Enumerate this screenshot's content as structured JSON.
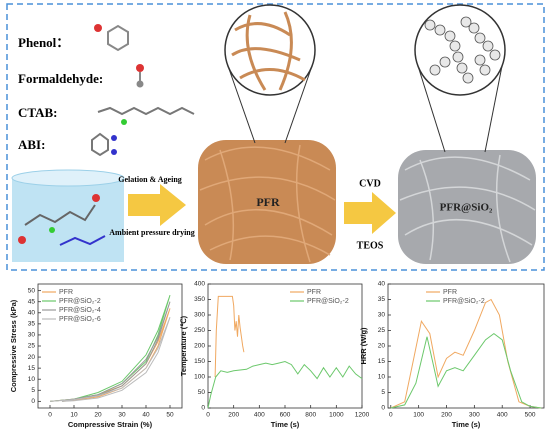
{
  "schematic": {
    "reagents": [
      "Phenol：",
      "Formaldehyde:",
      "CTAB:",
      "ABI:"
    ],
    "step1_top": "Gelation & Ageing",
    "step1_bottom": "Ambient pressure drying",
    "product1": "PFR",
    "step2_top": "CVD",
    "step2_bottom": "TEOS",
    "product2": "PFR@SiO₂"
  },
  "chart_data": [
    {
      "type": "line",
      "x_label": "Compressive Strain (%)",
      "y_label": "Compressive Stress (kPa)",
      "xlim": [
        -5,
        55
      ],
      "ylim": [
        -3,
        53
      ],
      "xticks": [
        0,
        10,
        20,
        30,
        40,
        50
      ],
      "yticks": [
        0,
        5,
        10,
        15,
        20,
        25,
        30,
        35,
        40,
        45,
        50
      ],
      "legend": "upper left",
      "series": [
        {
          "name": "PFR",
          "color": "#f0a860",
          "x": [
            0,
            10,
            20,
            30,
            40,
            45,
            50,
            45,
            40,
            30,
            20,
            10,
            5
          ],
          "values": [
            0,
            1,
            3,
            7,
            17,
            27,
            42,
            25,
            15,
            6,
            2,
            0.5,
            0
          ]
        },
        {
          "name": "PFR@SiO₂-2",
          "color": "#6cc86c",
          "x": [
            0,
            10,
            20,
            30,
            40,
            45,
            50,
            45,
            40,
            30,
            20,
            10,
            5
          ],
          "values": [
            0,
            1,
            4,
            9,
            21,
            32,
            48,
            30,
            18,
            8,
            3,
            1,
            0
          ]
        },
        {
          "name": "PFR@SiO₂-4",
          "color": "#999999",
          "x": [
            0,
            10,
            20,
            30,
            40,
            45,
            50,
            45,
            40,
            30,
            20,
            10,
            5
          ],
          "values": [
            0,
            1,
            3,
            8,
            19,
            29,
            45,
            28,
            17,
            7,
            2.5,
            0.8,
            0
          ]
        },
        {
          "name": "PFR@SiO₂-6",
          "color": "#bbbbbb",
          "x": [
            0,
            10,
            20,
            30,
            40,
            45,
            50,
            45,
            40,
            30,
            20,
            10,
            5
          ],
          "values": [
            0,
            0.8,
            2.5,
            6,
            15,
            24,
            38,
            22,
            13,
            5,
            1.5,
            0.3,
            0
          ]
        }
      ]
    },
    {
      "type": "line",
      "x_label": "Time (s)",
      "y_label": "Temperature (℃)",
      "xlim": [
        0,
        1200
      ],
      "ylim": [
        0,
        400
      ],
      "xticks": [
        0,
        200,
        400,
        600,
        800,
        1000,
        1200
      ],
      "yticks": [
        0,
        50,
        100,
        150,
        200,
        250,
        300,
        350,
        400
      ],
      "legend": "upper right",
      "series": [
        {
          "name": "PFR",
          "color": "#f0a860",
          "x": [
            55,
            65,
            80,
            190,
            200,
            210,
            220,
            230,
            240,
            250,
            260,
            270,
            280
          ],
          "values": [
            100,
            250,
            360,
            360,
            330,
            250,
            280,
            230,
            300,
            260,
            230,
            200,
            180
          ]
        },
        {
          "name": "PFR@SiO₂-2",
          "color": "#6cc86c",
          "x": [
            0,
            20,
            60,
            100,
            150,
            200,
            300,
            350,
            400,
            450,
            500,
            550,
            600,
            650,
            700,
            750,
            800,
            850,
            900,
            950,
            1000,
            1050,
            1100,
            1150,
            1200
          ],
          "values": [
            0,
            40,
            100,
            120,
            115,
            120,
            125,
            135,
            140,
            145,
            140,
            145,
            150,
            140,
            110,
            140,
            120,
            95,
            130,
            100,
            130,
            100,
            135,
            110,
            95
          ]
        }
      ]
    },
    {
      "type": "line",
      "x_label": "Time (s)",
      "y_label": "HRR (W/g)",
      "xlim": [
        -10,
        550
      ],
      "ylim": [
        0,
        40
      ],
      "xticks": [
        0,
        100,
        200,
        300,
        400,
        500
      ],
      "yticks": [
        0,
        5,
        10,
        15,
        20,
        25,
        30,
        35,
        40
      ],
      "legend": "upper center",
      "series": [
        {
          "name": "PFR",
          "color": "#f0a860",
          "x": [
            0,
            50,
            80,
            110,
            140,
            170,
            200,
            230,
            260,
            300,
            340,
            360,
            390,
            420,
            460,
            500,
            540
          ],
          "values": [
            0,
            2,
            15,
            28,
            24,
            10,
            16,
            18,
            17,
            25,
            34,
            35,
            30,
            15,
            2,
            0.5,
            0
          ]
        },
        {
          "name": "PFR@SiO₂-2",
          "color": "#6cc86c",
          "x": [
            0,
            50,
            90,
            130,
            150,
            170,
            200,
            230,
            260,
            300,
            340,
            370,
            400,
            430,
            470,
            500,
            540
          ],
          "values": [
            0,
            1,
            8,
            23,
            15,
            7,
            12,
            13,
            12,
            17,
            22,
            24,
            22,
            12,
            2,
            0.5,
            0
          ]
        }
      ]
    }
  ]
}
